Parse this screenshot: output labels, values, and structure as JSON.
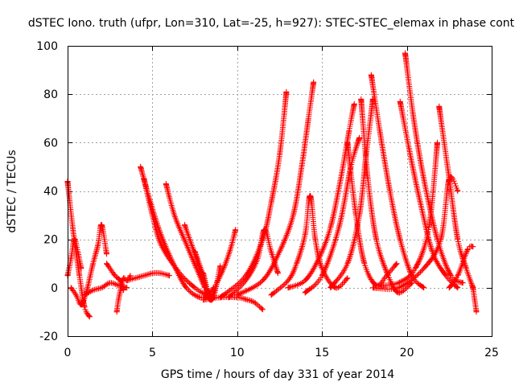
{
  "chart_data": {
    "type": "scatter",
    "title": "dSTEC Iono. truth (ufpr, Lon=310, Lat=-25, h=927): STEC-STEC_elemax in phase cont",
    "xlabel": "GPS time / hours of day 331 of year 2014",
    "ylabel": "dSTEC  / TECUs",
    "xlim": [
      0,
      25
    ],
    "ylim": [
      -20,
      100
    ],
    "x_ticks": [
      0,
      5,
      10,
      15,
      20,
      25
    ],
    "y_ticks": [
      -20,
      0,
      20,
      40,
      60,
      80,
      100
    ],
    "grid": true,
    "legend": "none",
    "marker": "plus",
    "series_color": "#ff0000",
    "series": [
      {
        "x": [
          0.0,
          0.3,
          0.7,
          1.0,
          1.3
        ],
        "y": [
          44,
          25,
          5,
          -8,
          -12
        ]
      },
      {
        "x": [
          0.0,
          0.2,
          0.4,
          0.6,
          0.8
        ],
        "y": [
          5,
          12,
          20,
          15,
          8
        ]
      },
      {
        "x": [
          0.2,
          0.5,
          0.8,
          1.1,
          1.5,
          1.8,
          2.0,
          2.3
        ],
        "y": [
          0,
          -3,
          -7,
          -2,
          10,
          18,
          26,
          14
        ]
      },
      {
        "x": [
          2.3,
          2.8,
          3.1,
          3.3
        ],
        "y": [
          10,
          5,
          3,
          -1
        ]
      },
      {
        "x": [
          1.0,
          1.5,
          2.0,
          2.5,
          3.0,
          3.5
        ],
        "y": [
          -3,
          -1,
          0,
          2,
          1,
          0
        ]
      },
      {
        "x": [
          2.9,
          3.0,
          3.15,
          3.3,
          3.5,
          3.7
        ],
        "y": [
          -10,
          -5,
          0,
          4,
          3,
          5
        ]
      },
      {
        "x": [
          3.5,
          4.0,
          4.5,
          5.0,
          5.5,
          6.0
        ],
        "y": [
          3,
          4,
          5,
          6,
          6,
          5
        ]
      },
      {
        "x": [
          4.3,
          4.9,
          5.5,
          6.3,
          7.0,
          7.8,
          8.3,
          8.6
        ],
        "y": [
          50,
          35,
          22,
          9,
          0,
          -4,
          -3,
          0
        ]
      },
      {
        "x": [
          4.5,
          5.0,
          5.5,
          6.5,
          7.5,
          8.2
        ],
        "y": [
          45,
          30,
          18,
          7,
          0,
          -3
        ]
      },
      {
        "x": [
          5.8,
          6.3,
          7.0,
          7.6,
          8.1,
          8.4
        ],
        "y": [
          43,
          30,
          18,
          8,
          0,
          -3
        ]
      },
      {
        "x": [
          6.9,
          7.3,
          7.7,
          8.0,
          8.3
        ],
        "y": [
          26,
          18,
          10,
          3,
          -2
        ]
      },
      {
        "x": [
          7.5,
          8.0,
          8.4,
          8.8,
          9.2,
          9.6,
          9.9
        ],
        "y": [
          15,
          5,
          -5,
          2,
          8,
          16,
          24
        ]
      },
      {
        "x": [
          8.0,
          8.5,
          9.0
        ],
        "y": [
          6,
          -5,
          9
        ]
      },
      {
        "x": [
          8.0,
          9.0,
          10.0,
          10.6,
          11.0,
          11.5
        ],
        "y": [
          -5,
          -4,
          -4,
          -5,
          -6,
          -9
        ]
      },
      {
        "x": [
          9.5,
          10.5,
          11.2,
          11.6,
          12.0,
          12.4
        ],
        "y": [
          -4,
          3,
          12,
          24,
          15,
          6
        ]
      },
      {
        "x": [
          9.0,
          10.5,
          11.5,
          12.0,
          12.5,
          12.9
        ],
        "y": [
          -4,
          5,
          20,
          35,
          55,
          81
        ]
      },
      {
        "x": [
          10.0,
          11.5,
          12.5,
          13.3,
          13.8,
          14.2,
          14.5
        ],
        "y": [
          -3,
          3,
          15,
          30,
          50,
          70,
          85
        ]
      },
      {
        "x": [
          12.0,
          13.0,
          13.5,
          14.0,
          14.3,
          14.6,
          15.0,
          15.8,
          16.5
        ],
        "y": [
          -3,
          3,
          10,
          22,
          38,
          20,
          8,
          0,
          4
        ]
      },
      {
        "x": [
          13.0,
          14.0,
          14.8,
          15.5,
          16.1,
          16.6,
          16.9
        ],
        "y": [
          0,
          3,
          12,
          25,
          45,
          65,
          76
        ]
      },
      {
        "x": [
          14.0,
          15.0,
          16.0,
          16.7,
          17.2
        ],
        "y": [
          -2,
          5,
          25,
          50,
          62
        ]
      },
      {
        "x": [
          15.5,
          16.5,
          17.2,
          17.6,
          18.0
        ],
        "y": [
          0,
          10,
          30,
          55,
          78
        ]
      },
      {
        "x": [
          16.5,
          17.0,
          17.5,
          18.2,
          18.8,
          19.4
        ],
        "y": [
          60,
          30,
          10,
          1,
          5,
          10
        ]
      },
      {
        "x": [
          17.3,
          17.7,
          18.2,
          18.9,
          19.5,
          20.3
        ],
        "y": [
          78,
          45,
          20,
          5,
          -2,
          2
        ]
      },
      {
        "x": [
          17.9,
          18.4,
          19.0,
          19.6,
          20.3,
          21.0
        ],
        "y": [
          88,
          65,
          40,
          20,
          5,
          0
        ]
      },
      {
        "x": [
          19.9,
          20.4,
          21.0,
          21.8,
          22.6,
          23.3
        ],
        "y": [
          97,
          70,
          45,
          20,
          5,
          2
        ]
      },
      {
        "x": [
          19.6,
          20.2,
          20.8,
          21.5,
          22.3,
          23.0
        ],
        "y": [
          77,
          55,
          35,
          15,
          5,
          0
        ]
      },
      {
        "x": [
          18.5,
          19.5,
          20.5,
          21.3,
          21.8
        ],
        "y": [
          1,
          2,
          8,
          25,
          60
        ]
      },
      {
        "x": [
          18.0,
          19.5,
          21.0,
          22.0,
          22.5,
          23.0
        ],
        "y": [
          0,
          0,
          8,
          20,
          45,
          40
        ]
      },
      {
        "x": [
          21.9,
          22.5,
          23.0,
          23.5,
          23.9
        ],
        "y": [
          75,
          45,
          20,
          8,
          0
        ]
      },
      {
        "x": [
          22.5,
          23.0,
          23.6,
          23.9
        ],
        "y": [
          0,
          5,
          16,
          17
        ]
      },
      {
        "x": [
          23.9,
          24.0,
          24.1
        ],
        "y": [
          0,
          -5,
          -10
        ]
      }
    ]
  }
}
